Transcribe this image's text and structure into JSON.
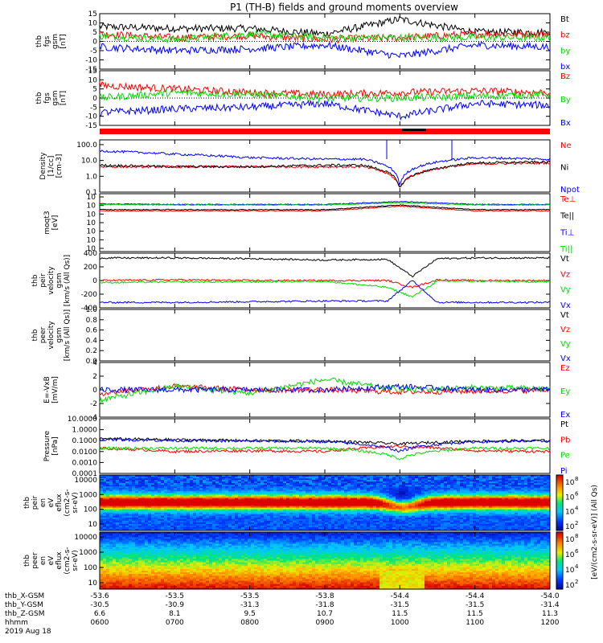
{
  "title": "P1 (TH-B) fields and ground moments overview",
  "colors": {
    "black": "#000000",
    "red": "#ff0000",
    "green": "#00dd00",
    "blue": "#0000ff"
  },
  "chart_data": [
    {
      "id": "fgs_gsm",
      "type": "line",
      "ylabel": [
        "thb",
        "fgs",
        "gsm",
        "[nT]"
      ],
      "ylim": [
        -15,
        15
      ],
      "yticks": [
        15,
        10,
        5,
        0,
        -5,
        -10,
        -15
      ],
      "series": [
        {
          "name": "Bt",
          "color": "#000000",
          "x": [
            "0600",
            "0700",
            "0800",
            "0900",
            "1000",
            "1100",
            "1200"
          ],
          "values": [
            8,
            7,
            7,
            4,
            12,
            5,
            5
          ]
        },
        {
          "name": "bz",
          "color": "#ff0000",
          "x": [
            "0600",
            "0700",
            "0800",
            "0900",
            "1000",
            "1100",
            "1200"
          ],
          "values": [
            4,
            2,
            3,
            1,
            2,
            4,
            4
          ]
        },
        {
          "name": "by",
          "color": "#00dd00",
          "x": [
            "0600",
            "0700",
            "0800",
            "0900",
            "1000",
            "1100",
            "1200"
          ],
          "values": [
            3,
            1,
            4,
            2,
            2,
            2,
            2
          ]
        },
        {
          "name": "bx",
          "color": "#0000ff",
          "x": [
            "0600",
            "0700",
            "0800",
            "0900",
            "1000",
            "1100",
            "1200"
          ],
          "values": [
            -3,
            -5,
            -4,
            -2,
            -8,
            -2,
            -3
          ]
        }
      ]
    },
    {
      "id": "fgs_gsm_cap",
      "type": "line",
      "ylabel": [
        "thb",
        "fgs",
        "gsm",
        "[nT]"
      ],
      "ylim": [
        -15,
        15
      ],
      "yticks": [
        15,
        10,
        5,
        0,
        -5,
        -10,
        -15
      ],
      "series": [
        {
          "name": "Bz",
          "color": "#ff0000",
          "x": [
            "0600",
            "0700",
            "0800",
            "0900",
            "1000",
            "1100",
            "1200"
          ],
          "values": [
            7,
            5,
            3,
            2,
            3,
            4,
            3
          ]
        },
        {
          "name": "By",
          "color": "#00dd00",
          "x": [
            "0600",
            "0700",
            "0800",
            "0900",
            "1000",
            "1100",
            "1200"
          ],
          "values": [
            0,
            3,
            2,
            0,
            0,
            1,
            2
          ]
        },
        {
          "name": "Bx",
          "color": "#0000ff",
          "x": [
            "0600",
            "0700",
            "0800",
            "0900",
            "1000",
            "1100",
            "1200"
          ],
          "values": [
            -8,
            -6,
            -5,
            -3,
            -10,
            -3,
            -4
          ]
        }
      ]
    },
    {
      "id": "density",
      "type": "line",
      "ylabel": [
        "Density",
        "[1/cc]",
        "[cm-3]"
      ],
      "scale": "log",
      "ylim": [
        0.1,
        200
      ],
      "yticks": [
        "100.0",
        "10.0",
        "1.0",
        "0.1"
      ],
      "series": [
        {
          "name": "Ne",
          "color": "#ff0000",
          "x": [
            "0600",
            "0700",
            "0800",
            "0900",
            "0930",
            "1000",
            "1030",
            "1100",
            "1200"
          ],
          "values": [
            4,
            4,
            4,
            4,
            4,
            0.15,
            3,
            6,
            7
          ]
        },
        {
          "name": "Ni",
          "color": "#000000",
          "x": [
            "0600",
            "0700",
            "0800",
            "0900",
            "0930",
            "1000",
            "1030",
            "1100",
            "1200"
          ],
          "values": [
            5,
            4,
            4,
            5,
            5,
            0.15,
            3,
            7,
            8
          ]
        },
        {
          "name": "Npot",
          "color": "#0000ff",
          "x": [
            "0600",
            "0700",
            "0800",
            "0900",
            "0930",
            "1000",
            "1030",
            "1100",
            "1200"
          ],
          "values": [
            40,
            25,
            15,
            12,
            12,
            0.2,
            8,
            15,
            12
          ]
        }
      ]
    },
    {
      "id": "temperature",
      "type": "line",
      "ylabel": [
        "moqt3",
        "[eV]"
      ],
      "scale": "log",
      "yticks": [
        "10",
        "10",
        "10",
        "10",
        "10",
        "10",
        "10"
      ],
      "series": [
        {
          "name": "Te⊥",
          "color": "#ff0000",
          "values": [
            1.6,
            1.6,
            1.6,
            1.6,
            2.4,
            1.6,
            1.6
          ]
        },
        {
          "name": "Te||",
          "color": "#000000",
          "values": [
            1.8,
            1.8,
            1.8,
            1.8,
            2.6,
            1.8,
            1.8
          ]
        },
        {
          "name": "Ti⊥",
          "color": "#0000ff",
          "values": [
            2.8,
            2.7,
            2.7,
            2.7,
            3.2,
            2.7,
            2.7
          ]
        },
        {
          "name": "Ti||",
          "color": "#00dd00",
          "values": [
            2.7,
            2.6,
            2.6,
            2.6,
            3.0,
            2.6,
            2.6
          ]
        }
      ]
    },
    {
      "id": "peir_velocity",
      "type": "line",
      "ylabel": [
        "thb",
        "peir",
        "velocity",
        "gsm",
        "[km/s (All Qs)]"
      ],
      "ylim": [
        -400,
        400
      ],
      "yticks": [
        400,
        200,
        0,
        -200,
        -400
      ],
      "series": [
        {
          "name": "Vt",
          "color": "#000000",
          "x": [
            "0600",
            "0700",
            "0800",
            "0900",
            "0950",
            "1010",
            "1030",
            "1100",
            "1200"
          ],
          "values": [
            330,
            330,
            320,
            300,
            310,
            60,
            320,
            330,
            330
          ]
        },
        {
          "name": "Vz",
          "color": "#ff0000",
          "x": [
            "0600",
            "0700",
            "0800",
            "0900",
            "0950",
            "1010",
            "1030",
            "1100",
            "1200"
          ],
          "values": [
            0,
            10,
            0,
            0,
            0,
            -100,
            10,
            0,
            0
          ]
        },
        {
          "name": "Vy",
          "color": "#00dd00",
          "x": [
            "0600",
            "0700",
            "0800",
            "0900",
            "0950",
            "1010",
            "1030",
            "1100",
            "1200"
          ],
          "values": [
            -30,
            -20,
            -20,
            -10,
            -100,
            -240,
            -10,
            -10,
            -20
          ]
        },
        {
          "name": "Vx",
          "color": "#0000ff",
          "x": [
            "0600",
            "0700",
            "0800",
            "0900",
            "0950",
            "1010",
            "1030",
            "1100",
            "1200"
          ],
          "values": [
            -320,
            -320,
            -310,
            -300,
            -300,
            0,
            -320,
            -320,
            -320
          ]
        }
      ]
    },
    {
      "id": "peer_velocity",
      "type": "line",
      "ylabel": [
        "thb",
        "peer",
        "velocity",
        "gsm",
        "[km/s (All Qs)]"
      ],
      "ylim": [
        0,
        1
      ],
      "yticks": [
        "1.0",
        "0.8",
        "0.6",
        "0.4",
        "0.2",
        "0.0"
      ],
      "series": [
        {
          "name": "Vt",
          "color": "#000000",
          "values": []
        },
        {
          "name": "Vz",
          "color": "#ff0000",
          "values": []
        },
        {
          "name": "Vy",
          "color": "#00dd00",
          "values": []
        },
        {
          "name": "Vx",
          "color": "#0000ff",
          "values": []
        }
      ]
    },
    {
      "id": "e_field",
      "type": "line",
      "ylabel": [
        "E=-VxB",
        "[mV/m]"
      ],
      "ylim": [
        -4,
        4
      ],
      "yticks": [
        4,
        2,
        0,
        -2,
        -4
      ],
      "series": [
        {
          "name": "Ez",
          "color": "#ff0000",
          "x": [
            "0600",
            "0700",
            "0800",
            "0900",
            "1000",
            "1100",
            "1200"
          ],
          "values": [
            -0.5,
            0.5,
            0,
            0,
            -0.3,
            -0.2,
            0
          ]
        },
        {
          "name": "Ey",
          "color": "#00dd00",
          "x": [
            "0600",
            "0700",
            "0800",
            "0900",
            "1000",
            "1100",
            "1200"
          ],
          "values": [
            -1.5,
            0.5,
            -0.5,
            1.5,
            0,
            0.3,
            0.2
          ]
        },
        {
          "name": "Ex",
          "color": "#0000ff",
          "x": [
            "0600",
            "0700",
            "0800",
            "0900",
            "1000",
            "1100",
            "1200"
          ],
          "values": [
            0,
            0,
            0,
            0,
            0.5,
            0,
            0
          ]
        }
      ]
    },
    {
      "id": "pressure",
      "type": "line",
      "ylabel": [
        "Pressure",
        "[nPa]"
      ],
      "scale": "log",
      "ylim": [
        0.0001,
        10
      ],
      "yticks": [
        "10.0000",
        "1.0000",
        "0.1000",
        "0.0100",
        "0.0010",
        "0.0001"
      ],
      "series": [
        {
          "name": "Pt",
          "color": "#000000",
          "x": [
            "0600",
            "0700",
            "0800",
            "0900",
            "1000",
            "1100",
            "1200"
          ],
          "values": [
            0.15,
            0.12,
            0.1,
            0.09,
            0.05,
            0.09,
            0.1
          ]
        },
        {
          "name": "Pb",
          "color": "#ff0000",
          "x": [
            "0600",
            "0700",
            "0800",
            "0900",
            "1000",
            "1100",
            "1200"
          ],
          "values": [
            0.02,
            0.01,
            0.012,
            0.01,
            0.03,
            0.012,
            0.01
          ]
        },
        {
          "name": "Pe",
          "color": "#00dd00",
          "x": [
            "0600",
            "0700",
            "0800",
            "0900",
            "1000",
            "1100",
            "1200"
          ],
          "values": [
            0.02,
            0.02,
            0.02,
            0.02,
            0.002,
            0.02,
            0.02
          ]
        },
        {
          "name": "Pi",
          "color": "#0000ff",
          "x": [
            "0600",
            "0700",
            "0800",
            "0900",
            "1000",
            "1100",
            "1200"
          ],
          "values": [
            0.13,
            0.1,
            0.09,
            0.08,
            0.01,
            0.08,
            0.09
          ]
        }
      ]
    },
    {
      "id": "peir_spectrogram",
      "type": "heatmap",
      "ylabel": [
        "thb",
        "peir",
        "en",
        "eV",
        "eflux",
        "(cm2-s-",
        "sr-eV)"
      ],
      "scale": "log",
      "yticks": [
        "10000",
        "1000",
        "100",
        "10"
      ],
      "cbar_label": "[eV/(cm2-s-sr-eV)] (All Qs)",
      "cbar_ticks": [
        "10",
        "10",
        "10",
        "10"
      ],
      "cbar_exponents": [
        "8",
        "6",
        "4",
        "2"
      ]
    },
    {
      "id": "peer_spectrogram",
      "type": "heatmap",
      "ylabel": [
        "thb",
        "peer",
        "en",
        "eV",
        "eflux",
        "(cm2-s-",
        "sr-eV)"
      ],
      "scale": "log",
      "yticks": [
        "10000",
        "1000",
        "100",
        "10"
      ],
      "cbar_label": "[eV/(cm2-s-sr-eV)] (All Qs)",
      "cbar_ticks": [
        "10",
        "10",
        "10",
        "10"
      ],
      "cbar_exponents": [
        "8",
        "6",
        "4",
        "2"
      ]
    }
  ],
  "ephemeris": {
    "labels": [
      "thb_X-GSM",
      "thb_Y-GSM",
      "thb_Z-GSM",
      "hhmm",
      "2019 Aug 18"
    ],
    "x_gsm": [
      "-53.6",
      "-53.5",
      "-53.5",
      "-53.8",
      "-54.4",
      "-54.4",
      "-54.0"
    ],
    "y_gsm": [
      "-30.5",
      "-30.9",
      "-31.3",
      "-31.8",
      "-31.5",
      "-31.5",
      "-31.4"
    ],
    "z_gsm": [
      "6.6",
      "8.1",
      "9.5",
      "10.7",
      "11.5",
      "11.5",
      "11.3"
    ],
    "hhmm": [
      "0600",
      "0700",
      "0800",
      "0900",
      "1000",
      "1100",
      "1200"
    ]
  }
}
